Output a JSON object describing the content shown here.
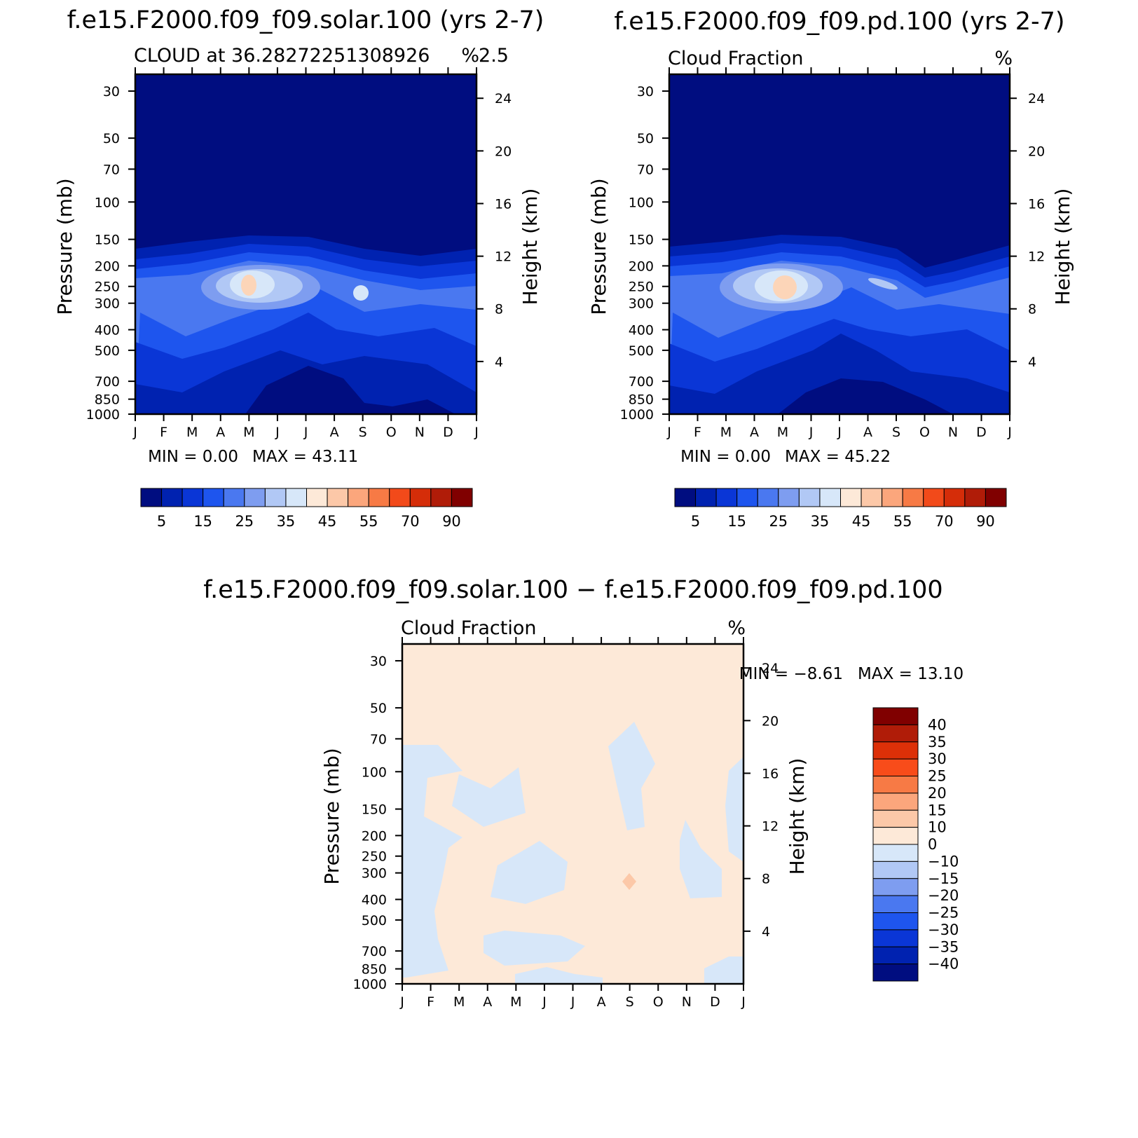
{
  "chart_data": [
    {
      "type": "contour",
      "title": "f.e15.F2000.f09_f09.solar.100 (yrs 2-7)",
      "subtitle_left": "CLOUD at 36.28272251308926",
      "subtitle_right": "2.5",
      "units": "%",
      "ylabel": "Pressure (mb)",
      "y2label": "Height (km)",
      "x_ticks": [
        "J",
        "F",
        "M",
        "A",
        "M",
        "J",
        "J",
        "A",
        "S",
        "O",
        "N",
        "D",
        "J"
      ],
      "pressure_ticks": [
        30,
        50,
        70,
        100,
        150,
        200,
        250,
        300,
        400,
        500,
        700,
        850,
        1000
      ],
      "height_ticks": [
        24,
        20,
        16,
        12,
        8,
        4
      ],
      "ylim": [
        1000,
        25
      ],
      "min_label": "MIN = 0.00",
      "max_label": "MAX = 43.11",
      "min": 0.0,
      "max": 43.11,
      "colorbar_labels": [
        "5",
        "15",
        "25",
        "35",
        "45",
        "55",
        "70",
        "90"
      ],
      "peak_month": "M",
      "peak_pressure_mb": 250
    },
    {
      "type": "contour",
      "title": "f.e15.F2000.f09_f09.pd.100 (yrs 2-7)",
      "subtitle_left": "Cloud Fraction",
      "subtitle_right": "",
      "units": "%",
      "ylabel": "Pressure (mb)",
      "y2label": "Height (km)",
      "x_ticks": [
        "J",
        "F",
        "M",
        "A",
        "M",
        "J",
        "J",
        "A",
        "S",
        "O",
        "N",
        "D",
        "J"
      ],
      "pressure_ticks": [
        30,
        50,
        70,
        100,
        150,
        200,
        250,
        300,
        400,
        500,
        700,
        850,
        1000
      ],
      "height_ticks": [
        24,
        20,
        16,
        12,
        8,
        4
      ],
      "ylim": [
        1000,
        25
      ],
      "min_label": "MIN = 0.00",
      "max_label": "MAX = 45.22",
      "min": 0.0,
      "max": 45.22,
      "colorbar_labels": [
        "5",
        "15",
        "25",
        "35",
        "45",
        "55",
        "70",
        "90"
      ],
      "peak_month": "M",
      "peak_pressure_mb": 250
    },
    {
      "type": "contour",
      "title": "f.e15.F2000.f09_f09.solar.100 − f.e15.F2000.f09_f09.pd.100",
      "subtitle_left": "Cloud Fraction",
      "subtitle_right": "",
      "units": "%",
      "ylabel": "Pressure (mb)",
      "y2label": "Height (km)",
      "x_ticks": [
        "J",
        "F",
        "M",
        "A",
        "M",
        "J",
        "J",
        "A",
        "S",
        "O",
        "N",
        "D",
        "J"
      ],
      "pressure_ticks": [
        30,
        50,
        70,
        100,
        150,
        200,
        250,
        300,
        400,
        500,
        700,
        850,
        1000
      ],
      "height_ticks": [
        24,
        20,
        16,
        12,
        8,
        4
      ],
      "ylim": [
        1000,
        25
      ],
      "min_label": "MIN = −8.61",
      "max_label": "MAX = 13.10",
      "min": -8.61,
      "max": 13.1,
      "colorbar_labels": [
        "40",
        "35",
        "30",
        "25",
        "20",
        "15",
        "10",
        "0",
        "−10",
        "−15",
        "−20",
        "−25",
        "−30",
        "−35",
        "−40"
      ]
    }
  ],
  "colors": {
    "seq": [
      "#000d80",
      "#0022b0",
      "#0a36d6",
      "#1e55ee",
      "#4a78f0",
      "#7e9df0",
      "#b1c8f5",
      "#d7e7f9",
      "#fde9d8",
      "#fcc8a8",
      "#fba67c",
      "#f77a45",
      "#f24a1a",
      "#d52d09",
      "#b01c08",
      "#800000"
    ],
    "diff": [
      "#800000",
      "#b01c08",
      "#dd3008",
      "#f84c1a",
      "#f77a45",
      "#fba67c",
      "#fcc8a8",
      "#fde9d8",
      "#d7e7f9",
      "#b1c8f5",
      "#7e9df0",
      "#4a78f0",
      "#1e55ee",
      "#0a36d6",
      "#0022b0",
      "#000d80"
    ],
    "peak": "#fcd5b8"
  }
}
